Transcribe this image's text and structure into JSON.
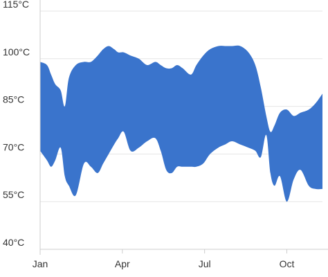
{
  "chart_data": {
    "type": "area",
    "subtype": "range-area",
    "title": "",
    "xlabel": "",
    "ylabel": "",
    "y_unit": "°C",
    "ylim": [
      40,
      115
    ],
    "yticks": [
      {
        "value": 40,
        "label": "40°C"
      },
      {
        "value": 55,
        "label": "55°C"
      },
      {
        "value": 70,
        "label": "70°C"
      },
      {
        "value": 85,
        "label": "85°C"
      },
      {
        "value": 100,
        "label": "100°C"
      },
      {
        "value": 115,
        "label": "115°C"
      }
    ],
    "xlim": [
      0,
      10.3
    ],
    "xticks": [
      {
        "value": 0,
        "label": "Jan"
      },
      {
        "value": 3,
        "label": "Apr"
      },
      {
        "value": 6,
        "label": "Jul"
      },
      {
        "value": 9,
        "label": "Oct"
      }
    ],
    "grid": {
      "horizontal": true,
      "vertical": false
    },
    "colors": {
      "fill": "#3a74cc",
      "grid": "#e6e6e6",
      "axis": "#cccccc",
      "text": "#333333",
      "background": "#ffffff"
    },
    "series": [
      {
        "x": [
          0.0,
          0.25,
          0.4,
          0.55,
          0.75,
          0.9,
          1.05,
          1.3,
          1.6,
          1.85,
          2.1,
          2.3,
          2.5,
          2.7,
          2.85,
          3.05,
          3.3,
          3.6,
          3.9,
          4.2,
          4.4,
          4.6,
          4.8,
          5.0,
          5.2,
          5.5,
          5.7,
          5.95,
          6.2,
          6.5,
          6.75,
          7.0,
          7.3,
          7.6,
          7.85,
          8.05,
          8.25,
          8.4,
          8.55,
          8.75,
          9.0,
          9.25,
          9.5,
          9.8,
          10.05,
          10.3
        ],
        "high": [
          99,
          98,
          95,
          92,
          90,
          85,
          94,
          98,
          99,
          99,
          101,
          103,
          104,
          103,
          102,
          102,
          101,
          100,
          98,
          99,
          98,
          97,
          97,
          98,
          97,
          95,
          98,
          101,
          103,
          104,
          104,
          104,
          104,
          102,
          98,
          91,
          82,
          77,
          79,
          83,
          84,
          82,
          83,
          84,
          86,
          89
        ],
        "low": [
          71,
          68,
          66,
          68,
          72,
          63,
          60,
          57,
          67,
          66,
          64,
          67,
          70,
          73,
          75,
          77,
          71,
          72,
          74,
          75,
          71,
          65,
          64,
          66,
          66,
          66,
          66,
          67,
          70,
          72,
          73,
          74,
          73,
          72,
          71,
          69,
          76,
          64,
          60,
          63,
          55,
          62,
          65,
          60,
          59,
          59
        ]
      }
    ]
  }
}
